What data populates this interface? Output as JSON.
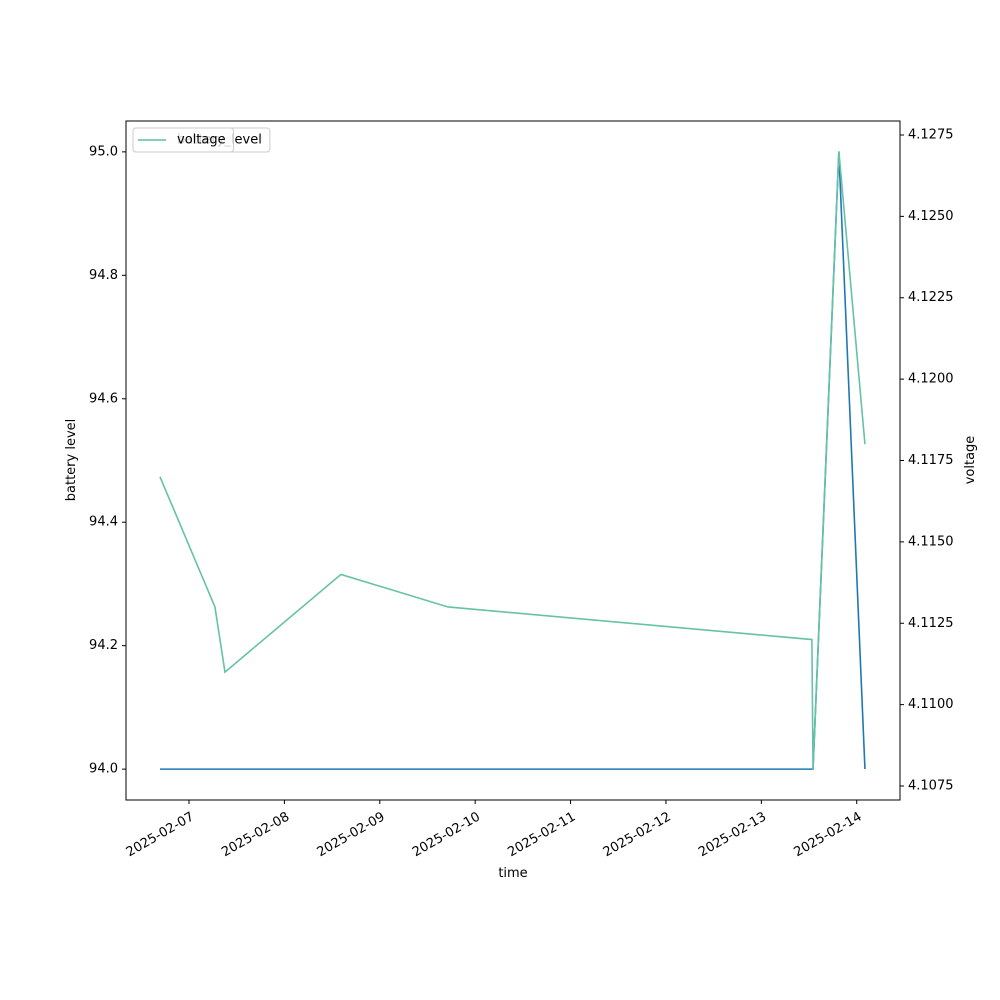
{
  "chart_data": {
    "type": "line",
    "x_label": "time",
    "y_label": "battery level",
    "y2_label": "voltage",
    "x": [
      "2025-02-06 16:42",
      "2025-02-07 06:32",
      "2025-02-07 09:03",
      "2025-02-08 14:14",
      "2025-02-09 17:10",
      "2025-02-13 12:43",
      "2025-02-13 13:00",
      "2025-02-13 19:30",
      "2025-02-14 02:04"
    ],
    "series": [
      {
        "name": "battery_level",
        "color": "#1f77b4",
        "values": [
          94,
          94,
          94,
          94,
          94,
          94,
          94,
          95,
          94
        ]
      },
      {
        "name": "voltage",
        "color": "#66c2a5",
        "axis": "y2",
        "values": [
          4.117,
          4.113,
          4.111,
          4.114,
          4.113,
          4.112,
          4.108,
          4.127,
          4.118
        ]
      }
    ],
    "xlim": [
      "2025-02-06 08:09",
      "2025-02-14 10:53"
    ],
    "xticks": [
      "2025-02-07",
      "2025-02-08",
      "2025-02-09",
      "2025-02-10",
      "2025-02-11",
      "2025-02-12",
      "2025-02-13",
      "2025-02-14"
    ],
    "ylim": [
      93.95,
      95.05
    ],
    "yticks": [
      {
        "value": 94,
        "label": "94.0"
      },
      {
        "value": 94.2,
        "label": "94.2"
      },
      {
        "value": 94.4,
        "label": "94.4"
      },
      {
        "value": 94.6,
        "label": "94.6"
      },
      {
        "value": 94.8,
        "label": "94.8"
      },
      {
        "value": 95,
        "label": "95.0"
      }
    ],
    "y2lim": [
      4.10707,
      4.12793
    ],
    "y2ticks": [
      {
        "value": 4.1075,
        "label": "4.1075"
      },
      {
        "value": 4.11,
        "label": "4.1100"
      },
      {
        "value": 4.1125,
        "label": "4.1125"
      },
      {
        "value": 4.115,
        "label": "4.1150"
      },
      {
        "value": 4.1175,
        "label": "4.1175"
      },
      {
        "value": 4.12,
        "label": "4.1200"
      },
      {
        "value": 4.1225,
        "label": "4.1225"
      },
      {
        "value": 4.125,
        "label": "4.1250"
      },
      {
        "value": 4.1275,
        "label": "4.1275"
      }
    ],
    "legend": "upper left"
  }
}
